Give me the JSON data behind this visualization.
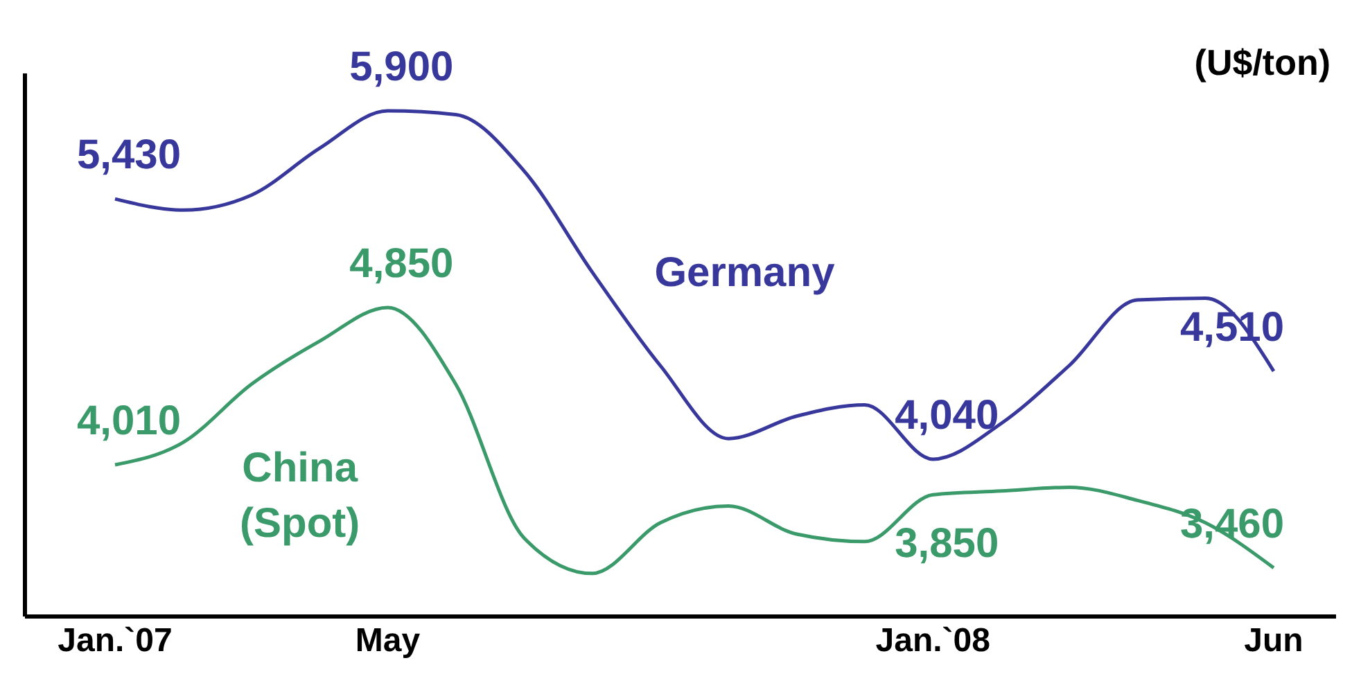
{
  "chart_data": {
    "type": "line",
    "ylabel": "(U$/ton)",
    "categories": [
      "Jan.`07",
      null,
      null,
      null,
      "May",
      null,
      null,
      null,
      null,
      null,
      null,
      null,
      "Jan.`08",
      null,
      null,
      null,
      null,
      "Jun"
    ],
    "ylim": [
      3200,
      6100
    ],
    "tick_labels": "x",
    "marker": "none",
    "line_style": "solid",
    "series": [
      {
        "name": "Germany",
        "color": "#38389c",
        "values": [
          5430,
          5370,
          5450,
          5700,
          5900,
          5880,
          5580,
          5040,
          4540,
          4150,
          4270,
          4330,
          4040,
          4230,
          4540,
          4890,
          4900,
          4510
        ],
        "value_labels": [
          "5,430",
          null,
          null,
          null,
          "5,900",
          null,
          null,
          null,
          null,
          null,
          null,
          null,
          "4,040",
          null,
          null,
          null,
          null,
          "4,510"
        ]
      },
      {
        "name": "China (Spot)",
        "color": "#3a9a6a",
        "values": [
          4010,
          4130,
          4440,
          4670,
          4850,
          4440,
          3620,
          3430,
          3700,
          3790,
          3640,
          3600,
          3850,
          3870,
          3890,
          3820,
          3700,
          3460
        ],
        "value_labels": [
          "4,010",
          null,
          null,
          null,
          "4,850",
          null,
          null,
          null,
          null,
          null,
          null,
          null,
          "3,850",
          null,
          null,
          null,
          null,
          "3,460"
        ]
      }
    ]
  }
}
